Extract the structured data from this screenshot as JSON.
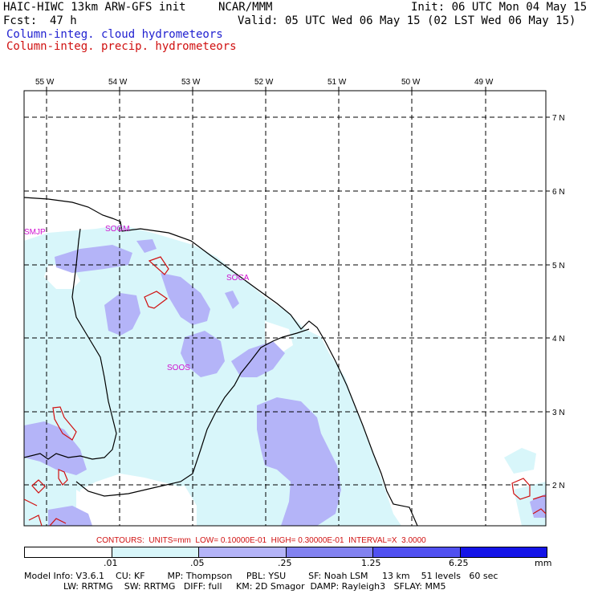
{
  "header": {
    "model": "HAIC-HIWC 13km ARW-GFS init",
    "org": "NCAR/MMM",
    "init": "Init: 06 UTC Mon 04 May 15",
    "fcst_label": "Fcst:",
    "fcst_value": "47 h",
    "valid": "Valid: 05 UTC Wed 06 May 15 (02 LST Wed 06 May 15)",
    "field1": "Column-integ. cloud hydrometeors",
    "field2": "Column-integ. precip. hydrometeors"
  },
  "axes": {
    "lon_labels": [
      "55 W",
      "54 W",
      "53 W",
      "52 W",
      "51 W",
      "50 W",
      "49 W"
    ],
    "lat_labels": [
      "7 N",
      "6 N",
      "5 N",
      "4 N",
      "3 N",
      "2 N"
    ]
  },
  "stations": [
    "SMJP",
    "SOGM",
    "SOCA",
    "SOOS"
  ],
  "contours_line": "CONTOURS:  UNITS=mm  LOW= 0.10000E-01  HIGH= 0.30000E-01  INTERVAL=X  3.0000",
  "colorbar": {
    "ticks": [
      ".01",
      ".05",
      ".25",
      "1.25",
      "6.25"
    ],
    "units": "mm",
    "colors": [
      "#ffffff",
      "#d8f6fa",
      "#b4b4f8",
      "#8282f0",
      "#5050f0",
      "#1414e8"
    ]
  },
  "footer": {
    "line1": "Model Info: V3.6.1    CU: KF        MP: Thompson     PBL: YSU        SF: Noah LSM     13 km    51 levels   60 sec",
    "line2": "              LW: RRTMG    SW: RRTMG   DIFF: full     KM: 2D Smagor  DAMP: Rayleigh3   SFLAY: MM5"
  },
  "colors": {
    "cloud_label": "#2020d0",
    "precip_label": "#d01010",
    "station": "#d010d0"
  }
}
